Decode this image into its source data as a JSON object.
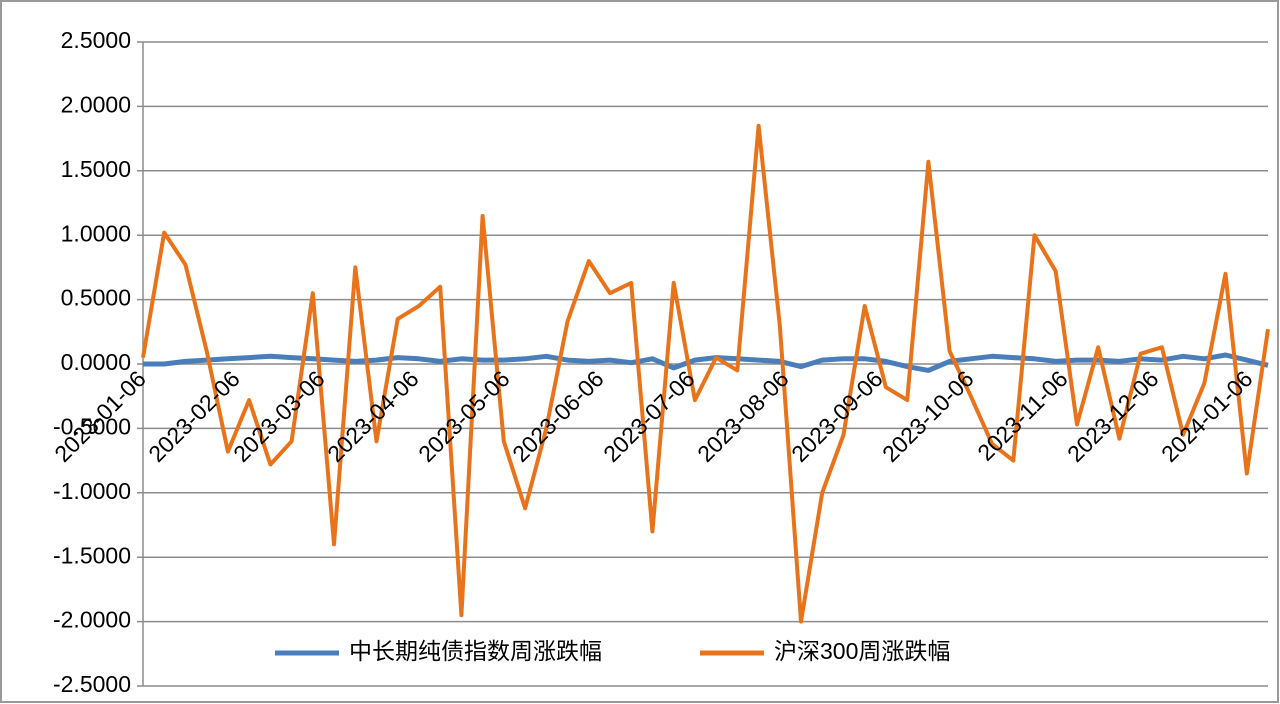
{
  "chart_data": {
    "type": "line",
    "x": [
      "2023-01-06",
      "2023-01-13",
      "2023-01-20",
      "2023-01-27",
      "2023-02-03",
      "2023-02-10",
      "2023-02-17",
      "2023-02-24",
      "2023-03-03",
      "2023-03-10",
      "2023-03-17",
      "2023-03-24",
      "2023-03-31",
      "2023-04-07",
      "2023-04-14",
      "2023-04-21",
      "2023-04-28",
      "2023-05-05",
      "2023-05-12",
      "2023-05-19",
      "2023-05-26",
      "2023-06-02",
      "2023-06-09",
      "2023-06-16",
      "2023-06-23",
      "2023-06-30",
      "2023-07-07",
      "2023-07-14",
      "2023-07-21",
      "2023-07-28",
      "2023-08-04",
      "2023-08-11",
      "2023-08-18",
      "2023-08-25",
      "2023-09-01",
      "2023-09-08",
      "2023-09-15",
      "2023-09-22",
      "2023-09-29",
      "2023-10-06",
      "2023-10-13",
      "2023-10-20",
      "2023-10-27",
      "2023-11-03",
      "2023-11-10",
      "2023-11-17",
      "2023-11-24",
      "2023-12-01",
      "2023-12-08",
      "2023-12-15",
      "2023-12-22",
      "2023-12-29",
      "2024-01-05",
      "2024-01-12"
    ],
    "xlim": [
      "2023-01-06",
      "2024-01-12"
    ],
    "xticks": [
      "2023-01-06",
      "2023-02-06",
      "2023-03-06",
      "2023-04-06",
      "2023-05-06",
      "2023-06-06",
      "2023-07-06",
      "2023-08-06",
      "2023-09-06",
      "2023-10-06",
      "2023-11-06",
      "2023-12-06",
      "2024-01-06"
    ],
    "ylim": [
      -2.5,
      2.5
    ],
    "yticks": [
      {
        "value": -2.5,
        "label": "-2.5000"
      },
      {
        "value": -2,
        "label": "-2.0000"
      },
      {
        "value": -1.5,
        "label": "-1.5000"
      },
      {
        "value": -1,
        "label": "-1.0000"
      },
      {
        "value": -0.5,
        "label": "-0.5000"
      },
      {
        "value": 0,
        "label": "0.0000"
      },
      {
        "value": 0.5,
        "label": "0.5000"
      },
      {
        "value": 1,
        "label": "1.0000"
      },
      {
        "value": 1.5,
        "label": "1.5000"
      },
      {
        "value": 2,
        "label": "2.0000"
      },
      {
        "value": 2.5,
        "label": "2.5000"
      }
    ],
    "grid": true,
    "legend": "bottom",
    "series": [
      {
        "name": "中长期纯债指数周涨跌幅",
        "color": "#4a7ebb",
        "values": [
          0,
          0,
          0.02,
          0.03,
          0.04,
          0.05,
          0.06,
          0.05,
          0.04,
          0.03,
          0.02,
          0.03,
          0.05,
          0.04,
          0.02,
          0.04,
          0.03,
          0.03,
          0.04,
          0.06,
          0.03,
          0.02,
          0.03,
          0.01,
          0.04,
          -0.03,
          0.03,
          0.05,
          0.04,
          0.03,
          0.02,
          -0.02,
          0.03,
          0.04,
          0.04,
          0.02,
          -0.02,
          -0.05,
          0.02,
          0.04,
          0.06,
          0.05,
          0.04,
          0.02,
          0.03,
          0.03,
          0.02,
          0.04,
          0.03,
          0.06,
          0.04,
          0.07,
          0.03,
          -0.01
        ]
      },
      {
        "name": "沪深300周涨跌幅",
        "color": "#e8731a",
        "values": [
          0.05,
          1.02,
          0.77,
          0.1,
          -0.68,
          -0.28,
          -0.78,
          -0.6,
          0.55,
          -1.4,
          0.75,
          -0.6,
          0.35,
          0.45,
          0.6,
          -1.95,
          1.15,
          -0.6,
          -1.12,
          -0.5,
          0.33,
          0.8,
          0.55,
          0.63,
          -1.3,
          0.63,
          -0.28,
          0.05,
          -0.05,
          1.85,
          0.3,
          -2.0,
          -1.0,
          -0.55,
          0.45,
          -0.18,
          -0.28,
          1.57,
          0.1,
          -0.25,
          -0.62,
          -0.75,
          1.0,
          0.72,
          -0.47,
          0.13,
          -0.58,
          0.08,
          0.13,
          -0.55,
          -0.15,
          0.7,
          -0.85,
          0.27
        ]
      }
    ]
  }
}
